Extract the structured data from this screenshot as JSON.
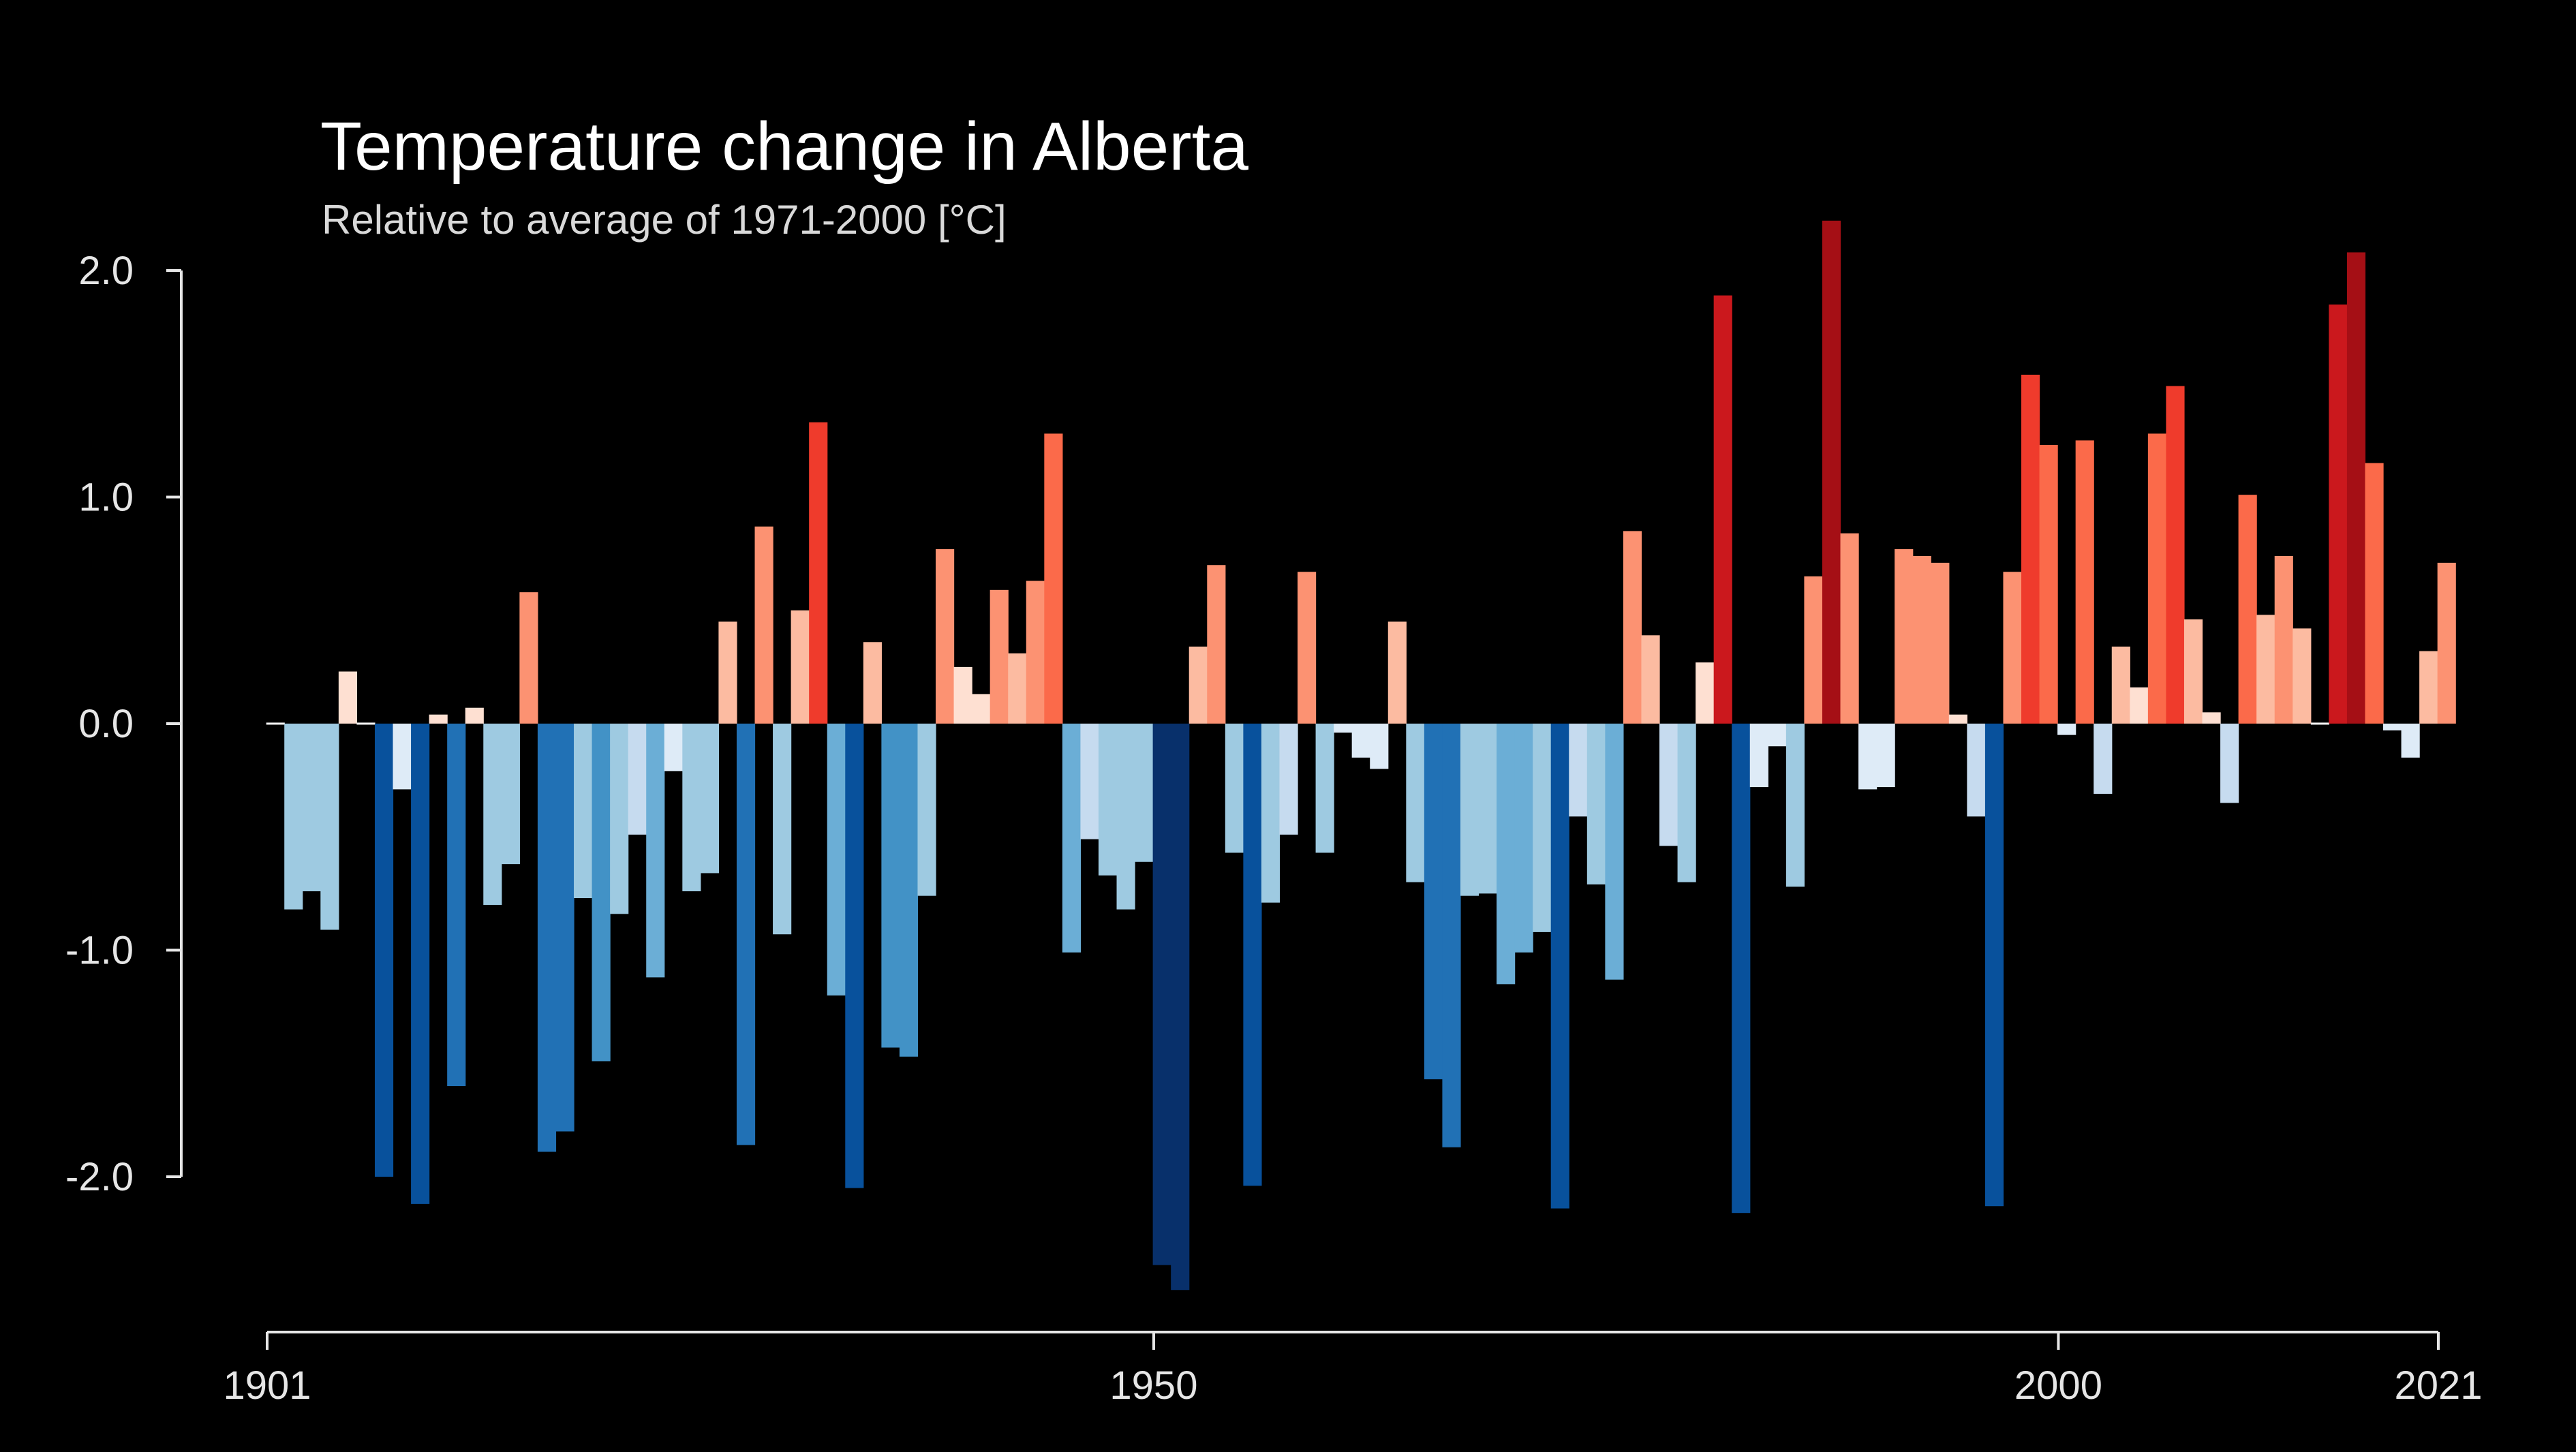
{
  "chart_data": {
    "type": "bar",
    "title": "Temperature change in Alberta",
    "subtitle": "Relative to average of 1971-2000  [°C]",
    "xlabel": "",
    "ylabel": "",
    "x_start": 1901,
    "x_end": 2021,
    "ylim": [
      -2.5,
      2.2
    ],
    "y_ticks": [
      2.0,
      1.0,
      0.0,
      -1.0,
      -2.0
    ],
    "y_tick_labels": [
      "2.0",
      "1.0",
      "0.0",
      "-1.0",
      "-2.0"
    ],
    "x_ticks": [
      1901,
      1950,
      2000,
      2021
    ],
    "x_tick_labels": [
      "1901",
      "1950",
      "2000",
      "2021"
    ],
    "grid": false,
    "legend": "none",
    "values": [
      0.0,
      -0.82,
      -0.74,
      -0.91,
      0.23,
      0.0,
      -2.0,
      -0.29,
      -2.12,
      0.04,
      -1.6,
      0.07,
      -0.8,
      -0.62,
      0.58,
      -1.89,
      -1.8,
      -0.77,
      -1.49,
      -0.84,
      -0.49,
      -1.12,
      -0.21,
      -0.74,
      -0.66,
      0.45,
      -1.86,
      0.87,
      -0.93,
      0.5,
      1.33,
      -1.2,
      -2.05,
      0.36,
      -1.43,
      -1.47,
      -0.76,
      0.77,
      0.25,
      0.13,
      0.59,
      0.31,
      0.63,
      1.28,
      -1.01,
      -0.51,
      -0.67,
      -0.82,
      -0.61,
      -2.39,
      -2.5,
      0.34,
      0.7,
      -0.57,
      -2.04,
      -0.79,
      -0.49,
      0.67,
      -0.57,
      -0.04,
      -0.15,
      -0.2,
      0.45,
      -0.7,
      -1.57,
      -1.87,
      -0.76,
      -0.75,
      -1.15,
      -1.01,
      -0.92,
      -2.14,
      -0.41,
      -0.71,
      -1.13,
      0.85,
      0.39,
      -0.54,
      -0.7,
      0.27,
      1.89,
      -2.16,
      -0.28,
      -0.1,
      -0.72,
      0.65,
      2.22,
      0.84,
      -0.29,
      -0.28,
      0.77,
      0.74,
      0.71,
      0.04,
      -0.41,
      -2.13,
      0.67,
      1.54,
      1.23,
      -0.05,
      1.25,
      -0.31,
      0.34,
      0.16,
      1.28,
      1.49,
      0.46,
      0.05,
      -0.35,
      1.01,
      0.48,
      0.74,
      0.42,
      0.0,
      1.85,
      2.08,
      1.15,
      -0.03,
      -0.15,
      0.32,
      0.71
    ]
  }
}
